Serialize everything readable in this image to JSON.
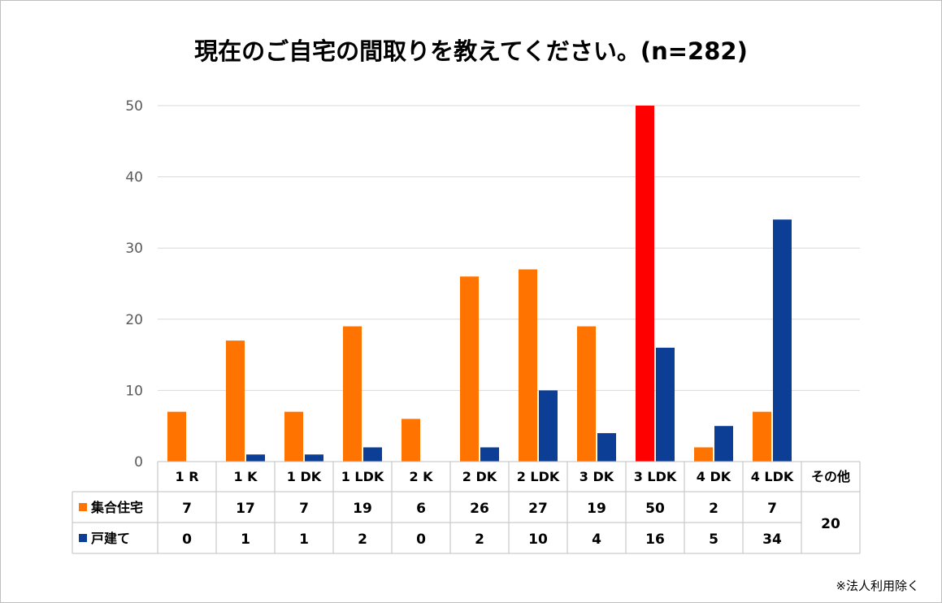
{
  "chart_data": {
    "type": "bar",
    "title": "現在のご自宅の間取りを教えてください。(n=282)",
    "categories": [
      "1 R",
      "1 K",
      "1 DK",
      "1 LDK",
      "2 K",
      "2 DK",
      "2 LDK",
      "3 DK",
      "3 LDK",
      "4 DK",
      "4 LDK",
      "その他"
    ],
    "series": [
      {
        "name": "集合住宅",
        "color": "#ff7300",
        "values": [
          7,
          17,
          7,
          19,
          6,
          26,
          27,
          19,
          50,
          2,
          7,
          null
        ]
      },
      {
        "name": "戸建て",
        "color": "#0d3e96",
        "values": [
          0,
          1,
          1,
          2,
          0,
          2,
          10,
          4,
          16,
          5,
          34,
          null
        ]
      }
    ],
    "highlight": {
      "series": 0,
      "category": 8,
      "color": "#ff0000"
    },
    "other_value": "20",
    "ylim": [
      0,
      50
    ],
    "yticks": [
      "0",
      "10",
      "20",
      "30",
      "40",
      "50"
    ],
    "grid": true,
    "legend": "data table",
    "note": "※法人利用除く"
  }
}
